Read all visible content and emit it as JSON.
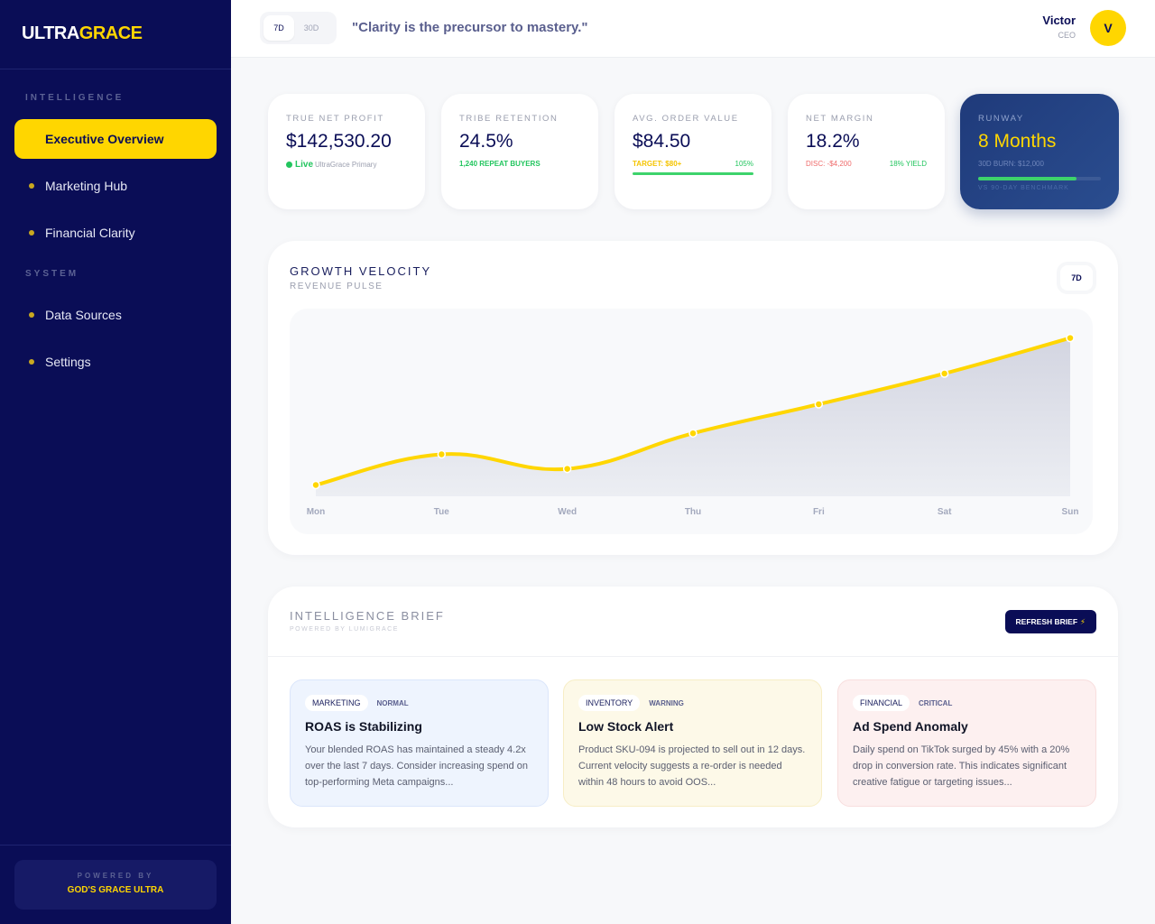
{
  "sidebar": {
    "logo": {
      "part1": "ULTRA",
      "part2": "GRACE"
    },
    "sections": [
      {
        "label": "INTELLIGENCE",
        "items": [
          {
            "label": "Executive Overview",
            "active": true
          },
          {
            "label": "Marketing Hub"
          },
          {
            "label": "Financial Clarity"
          }
        ]
      },
      {
        "label": "SYSTEM",
        "items": [
          {
            "label": "Data Sources"
          },
          {
            "label": "Settings"
          }
        ]
      }
    ],
    "footer": {
      "powered_by": "POWERED BY",
      "brand": "GOD'S GRACE ULTRA"
    }
  },
  "topbar": {
    "range_options": [
      "7D",
      "30D"
    ],
    "range_selected": "7D",
    "quote": "\"Clarity is the precursor to mastery.\"",
    "user": {
      "name": "Victor",
      "role": "CEO",
      "initial": "V"
    }
  },
  "kpis": [
    {
      "label": "TRUE NET PROFIT",
      "value": "$142,530.20",
      "live": "Live",
      "source": "UltraGrace Primary"
    },
    {
      "label": "TRIBE RETENTION",
      "value": "24.5%",
      "note": "1,240 REPEAT BUYERS"
    },
    {
      "label": "AVG. ORDER VALUE",
      "value": "$84.50",
      "target": "TARGET: $80+",
      "pct": "105%"
    },
    {
      "label": "NET MARGIN",
      "value": "18.2%",
      "disc": "DISC: -$4,200",
      "yield": "18% YIELD"
    },
    {
      "label": "RUNWAY",
      "value": "8 Months",
      "burn": "30D BURN: $12,000",
      "bench": "VS 90-DAY BENCHMARK",
      "progress": 80
    }
  ],
  "growth": {
    "title": "GROWTH VELOCITY",
    "subtitle": "REVENUE PULSE",
    "range": "7D"
  },
  "chart_data": {
    "type": "area",
    "title": "GROWTH VELOCITY",
    "subtitle": "REVENUE PULSE",
    "categories": [
      "Mon",
      "Tue",
      "Wed",
      "Thu",
      "Fri",
      "Sat",
      "Sun"
    ],
    "values": [
      7,
      26,
      17,
      39,
      57,
      76,
      98
    ],
    "xlabel": "",
    "ylabel": "",
    "ylim": [
      0,
      100
    ],
    "grid": false,
    "line_color": "#ffd600",
    "fill_color": "#d3d5e1"
  },
  "brief": {
    "title": "INTELLIGENCE BRIEF",
    "subtitle": "POWERED BY LUMIGRACE",
    "refresh_label": "REFRESH BRIEF",
    "refresh_icon": "⚡",
    "cards": [
      {
        "category": "MARKETING",
        "severity": "NORMAL",
        "title": "ROAS is Stabilizing",
        "text": "Your blended ROAS has maintained a steady 4.2x over the last 7 days. Consider increasing spend on top-performing Meta campaigns...",
        "bg": "#eef4fe",
        "border": "#dbe6fb"
      },
      {
        "category": "INVENTORY",
        "severity": "WARNING",
        "title": "Low Stock Alert",
        "text": "Product SKU-094 is projected to sell out in 12 days. Current velocity suggests a re-order is needed within 48 hours to avoid OOS...",
        "bg": "#fdf9e8",
        "border": "#f7eec6"
      },
      {
        "category": "FINANCIAL",
        "severity": "CRITICAL",
        "title": "Ad Spend Anomaly",
        "text": "Daily spend on TikTok surged by 45% with a 20% drop in conversion rate. This indicates significant creative fatigue or targeting issues...",
        "bg": "#fdf0f0",
        "border": "#f8dede"
      }
    ]
  },
  "colors": {
    "sidebar": "#0a0d56",
    "accent": "#ffd600",
    "success": "#22c55e",
    "danger": "#ef6b6b"
  }
}
